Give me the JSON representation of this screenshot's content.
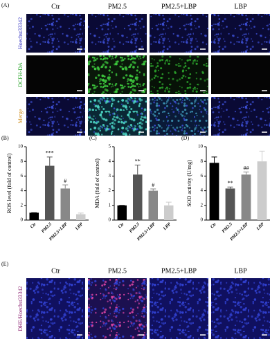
{
  "panel_a": {
    "label": "(A)",
    "columns": [
      "Ctr",
      "PM2.5",
      "PM2.5+LBP",
      "LBP"
    ],
    "rows": [
      "Hoechst33342",
      "DCFH-DA",
      "Merge"
    ]
  },
  "chart_data": [
    {
      "type": "bar",
      "label": "(B)",
      "y_label": "ROS level (fold of control)",
      "categories": [
        "Ctr",
        "PM2.5",
        "PM2.5+LBP",
        "LBP"
      ],
      "values": [
        1,
        7.4,
        4.3,
        0.8
      ],
      "errors": [
        0,
        1.2,
        0.5,
        0.15
      ],
      "annotations": [
        null,
        "***",
        "#",
        null
      ],
      "colors": [
        "#000000",
        "#555555",
        "#888888",
        "#cccccc"
      ],
      "ylim": [
        0,
        10
      ],
      "yticks": [
        0,
        2,
        4,
        6,
        8,
        10
      ]
    },
    {
      "type": "bar",
      "label": "(C)",
      "y_label": "MDA (fold of control)",
      "categories": [
        "Ctr",
        "PM2.5",
        "PM2.5+LBP",
        "LBP"
      ],
      "values": [
        1,
        3.1,
        2.0,
        1.0
      ],
      "errors": [
        0,
        0.65,
        0.12,
        0.22
      ],
      "annotations": [
        null,
        "**",
        "#",
        null
      ],
      "colors": [
        "#000000",
        "#555555",
        "#888888",
        "#cccccc"
      ],
      "ylim": [
        0,
        5
      ],
      "yticks": [
        0,
        1,
        2,
        3,
        4,
        5
      ]
    },
    {
      "type": "bar",
      "label": "(D)",
      "y_label": "SOD activity (U/mg)",
      "categories": [
        "Ctr",
        "PM2.5",
        "PM2.5+LBP",
        "LBP"
      ],
      "values": [
        7.8,
        4.3,
        6.2,
        8.0
      ],
      "errors": [
        0.8,
        0.2,
        0.35,
        1.4
      ],
      "annotations": [
        null,
        "**",
        "##",
        null
      ],
      "colors": [
        "#000000",
        "#555555",
        "#888888",
        "#cccccc"
      ],
      "ylim": [
        0,
        10
      ],
      "yticks": [
        0,
        2,
        4,
        6,
        8,
        10
      ]
    }
  ],
  "panel_e": {
    "label": "(E)",
    "columns": [
      "Ctr",
      "PM2.5",
      "PM2.5+LBP",
      "LBP"
    ],
    "row_label": "DHE/Hoechst33342"
  }
}
